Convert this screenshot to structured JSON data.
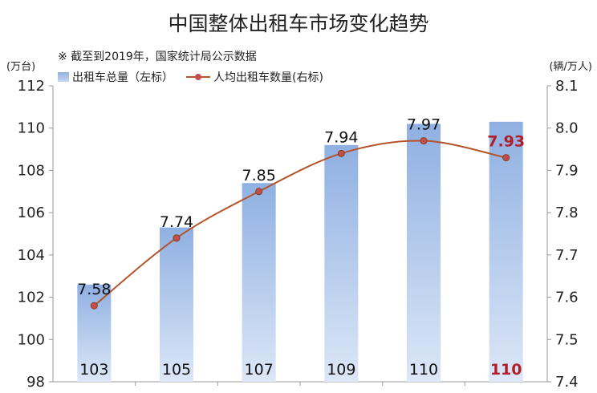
{
  "title": "中国整体出租车市场变化趋势",
  "note": "※ 截至到2019年，国家统计局公示数据",
  "unit_left": "(万台)",
  "unit_right": "(辆/万人)",
  "chart_data": {
    "type": "bar",
    "title": "中国整体出租车市场变化趋势",
    "categories": [
      "",
      "",
      "",
      "",
      "",
      ""
    ],
    "series": [
      {
        "name": "出租车总量（左标）",
        "axis": "left",
        "type": "bar",
        "values": [
          102.6,
          105.3,
          107.4,
          109.2,
          110.2,
          110.3
        ],
        "labels": [
          "103",
          "105",
          "107",
          "109",
          "110",
          "110"
        ]
      },
      {
        "name": "人均出租车数量(右标)",
        "axis": "right",
        "type": "line",
        "values": [
          7.58,
          7.74,
          7.85,
          7.94,
          7.97,
          7.93
        ],
        "labels": [
          "7.58",
          "7.74",
          "7.85",
          "7.94",
          "7.97",
          "7.93"
        ]
      }
    ],
    "highlight_index": 5,
    "y_left": {
      "min": 98,
      "max": 112,
      "ticks": [
        "98",
        "100",
        "102",
        "104",
        "106",
        "108",
        "110",
        "112"
      ]
    },
    "y_right": {
      "min": 7.4,
      "max": 8.1,
      "ticks": [
        "7.4",
        "7.5",
        "7.6",
        "7.7",
        "7.8",
        "7.9",
        "8.0",
        "8.1"
      ]
    },
    "grid": false,
    "legend": "top-left",
    "colors": {
      "bar_top": "#8fb0e2",
      "bar_bottom": "#dce7f7",
      "line": "#b5532a",
      "marker": "#c0504d",
      "highlight": "#b01e2a"
    }
  }
}
